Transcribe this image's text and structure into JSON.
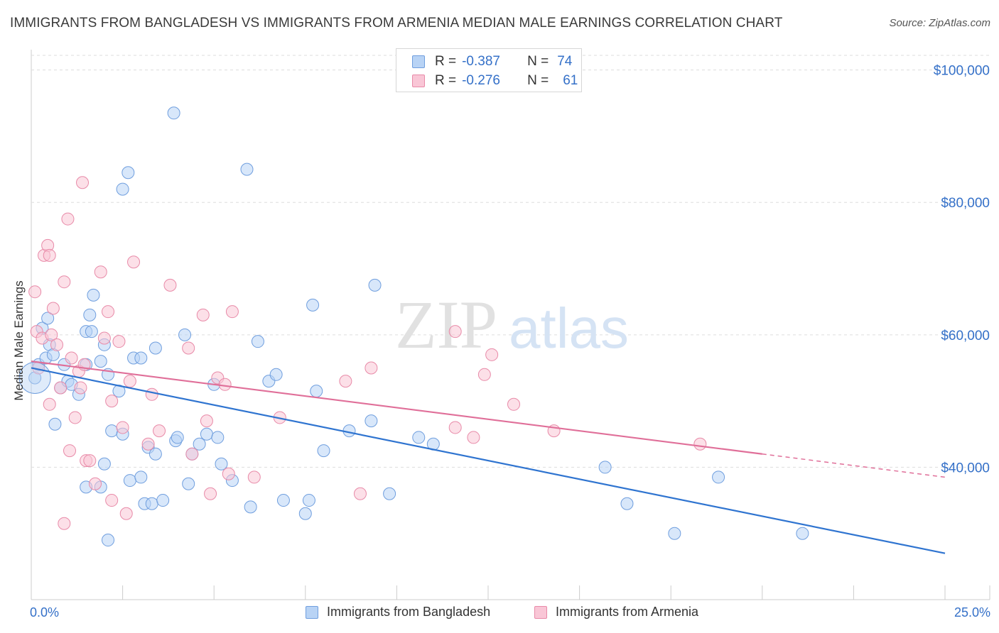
{
  "header": {
    "title": "IMMIGRANTS FROM BANGLADESH VS IMMIGRANTS FROM ARMENIA MEDIAN MALE EARNINGS CORRELATION CHART",
    "source": "Source: ZipAtlas.com"
  },
  "watermark": {
    "zip": "ZIP",
    "atlas": "atlas"
  },
  "legend": {
    "rows": [
      {
        "r_label": "R =",
        "r_value": "-0.387",
        "n_label": "N =",
        "n_value": "74"
      },
      {
        "r_label": "R =",
        "r_value": "-0.276",
        "n_label": "N =",
        "n_value": "61"
      }
    ]
  },
  "axes": {
    "ylabel": "Median Male Earnings",
    "x_min_label": "0.0%",
    "x_max_label": "25.0%",
    "y_ticks": [
      "$100,000",
      "$80,000",
      "$60,000",
      "$40,000"
    ]
  },
  "colors": {
    "blue_fill": "#b8d3f5",
    "blue_stroke": "#6f9ede",
    "blue_line": "#2f74d0",
    "pink_fill": "#f9c6d6",
    "pink_stroke": "#e88aa8",
    "pink_line": "#e06f99",
    "tick_text": "#3470c8",
    "grid": "#dddddd"
  },
  "chart_data": {
    "type": "scatter",
    "xlim": [
      0,
      25
    ],
    "ylim": [
      20000,
      102000
    ],
    "y_ticks": [
      40000,
      60000,
      80000,
      100000
    ],
    "grid": true,
    "legend_position": "top-center",
    "series": [
      {
        "name": "Immigrants from Bangladesh",
        "color": "blue",
        "trend": {
          "x0": 0,
          "y0": 55000,
          "x1": 25,
          "y1": 27000,
          "solid_to": 25
        },
        "points": [
          [
            0.1,
            53500
          ],
          [
            0.2,
            55500
          ],
          [
            0.3,
            61000
          ],
          [
            0.4,
            56500
          ],
          [
            0.45,
            62500
          ],
          [
            0.5,
            58500
          ],
          [
            0.6,
            57000
          ],
          [
            0.65,
            46500
          ],
          [
            0.8,
            52000
          ],
          [
            0.9,
            55500
          ],
          [
            1.0,
            53000
          ],
          [
            1.1,
            52500
          ],
          [
            1.3,
            51000
          ],
          [
            1.5,
            60500
          ],
          [
            1.5,
            55500
          ],
          [
            1.5,
            37000
          ],
          [
            1.6,
            63000
          ],
          [
            1.65,
            60500
          ],
          [
            1.7,
            66000
          ],
          [
            1.9,
            56000
          ],
          [
            1.9,
            37000
          ],
          [
            2.0,
            58500
          ],
          [
            2.0,
            40500
          ],
          [
            2.1,
            54000
          ],
          [
            2.1,
            29000
          ],
          [
            2.2,
            45500
          ],
          [
            2.4,
            51500
          ],
          [
            2.5,
            45000
          ],
          [
            2.5,
            82000
          ],
          [
            2.65,
            84500
          ],
          [
            2.7,
            38000
          ],
          [
            2.8,
            56500
          ],
          [
            3.0,
            56500
          ],
          [
            3.0,
            38500
          ],
          [
            3.1,
            34500
          ],
          [
            3.2,
            43000
          ],
          [
            3.3,
            34500
          ],
          [
            3.4,
            42000
          ],
          [
            3.4,
            58000
          ],
          [
            3.6,
            35000
          ],
          [
            3.9,
            93500
          ],
          [
            3.95,
            44000
          ],
          [
            4.0,
            44500
          ],
          [
            4.2,
            60000
          ],
          [
            4.3,
            37500
          ],
          [
            4.4,
            42000
          ],
          [
            4.6,
            43500
          ],
          [
            4.8,
            45000
          ],
          [
            5.0,
            52500
          ],
          [
            5.1,
            44500
          ],
          [
            5.2,
            40500
          ],
          [
            5.5,
            38000
          ],
          [
            5.9,
            85000
          ],
          [
            6.0,
            34000
          ],
          [
            6.2,
            59000
          ],
          [
            6.5,
            53000
          ],
          [
            6.7,
            54000
          ],
          [
            6.9,
            35000
          ],
          [
            7.5,
            33000
          ],
          [
            7.6,
            35000
          ],
          [
            7.8,
            51500
          ],
          [
            8.0,
            42500
          ],
          [
            7.7,
            64500
          ],
          [
            8.7,
            45500
          ],
          [
            9.3,
            47000
          ],
          [
            9.4,
            67500
          ],
          [
            9.8,
            36000
          ],
          [
            10.6,
            44500
          ],
          [
            11.0,
            43500
          ],
          [
            15.7,
            40000
          ],
          [
            16.3,
            34500
          ],
          [
            17.6,
            30000
          ],
          [
            18.8,
            38500
          ],
          [
            21.1,
            30000
          ]
        ]
      },
      {
        "name": "Immigrants from Armenia",
        "color": "pink",
        "trend": {
          "x0": 0,
          "y0": 56000,
          "x1": 25,
          "y1": 38500,
          "solid_to": 20
        },
        "points": [
          [
            0.1,
            66500
          ],
          [
            0.15,
            60500
          ],
          [
            0.2,
            55000
          ],
          [
            0.3,
            59500
          ],
          [
            0.35,
            72000
          ],
          [
            0.45,
            73500
          ],
          [
            0.5,
            72000
          ],
          [
            0.55,
            60000
          ],
          [
            0.6,
            64000
          ],
          [
            0.7,
            58500
          ],
          [
            0.8,
            52000
          ],
          [
            0.9,
            68000
          ],
          [
            0.9,
            31500
          ],
          [
            1.0,
            77500
          ],
          [
            1.05,
            42500
          ],
          [
            1.1,
            56500
          ],
          [
            1.2,
            47500
          ],
          [
            1.3,
            54500
          ],
          [
            1.35,
            52000
          ],
          [
            1.4,
            83000
          ],
          [
            1.45,
            55500
          ],
          [
            1.5,
            41000
          ],
          [
            1.6,
            41000
          ],
          [
            1.75,
            37500
          ],
          [
            1.9,
            69500
          ],
          [
            2.0,
            59500
          ],
          [
            2.1,
            63500
          ],
          [
            2.2,
            50000
          ],
          [
            2.2,
            35000
          ],
          [
            2.4,
            59000
          ],
          [
            2.5,
            46000
          ],
          [
            2.6,
            33000
          ],
          [
            2.7,
            53000
          ],
          [
            2.8,
            71000
          ],
          [
            3.2,
            43500
          ],
          [
            3.3,
            51000
          ],
          [
            3.5,
            45500
          ],
          [
            3.8,
            67500
          ],
          [
            4.3,
            58000
          ],
          [
            4.4,
            42000
          ],
          [
            4.7,
            63000
          ],
          [
            4.8,
            47000
          ],
          [
            4.9,
            36000
          ],
          [
            5.1,
            53500
          ],
          [
            5.3,
            52500
          ],
          [
            5.4,
            39000
          ],
          [
            5.5,
            63500
          ],
          [
            6.1,
            38500
          ],
          [
            6.8,
            47500
          ],
          [
            8.6,
            53000
          ],
          [
            9.0,
            36000
          ],
          [
            9.3,
            55000
          ],
          [
            11.6,
            60500
          ],
          [
            11.6,
            46000
          ],
          [
            12.1,
            44500
          ],
          [
            12.4,
            54000
          ],
          [
            12.6,
            57000
          ],
          [
            13.2,
            49500
          ],
          [
            14.3,
            45500
          ],
          [
            18.3,
            43500
          ],
          [
            0.5,
            49500
          ]
        ]
      }
    ]
  }
}
